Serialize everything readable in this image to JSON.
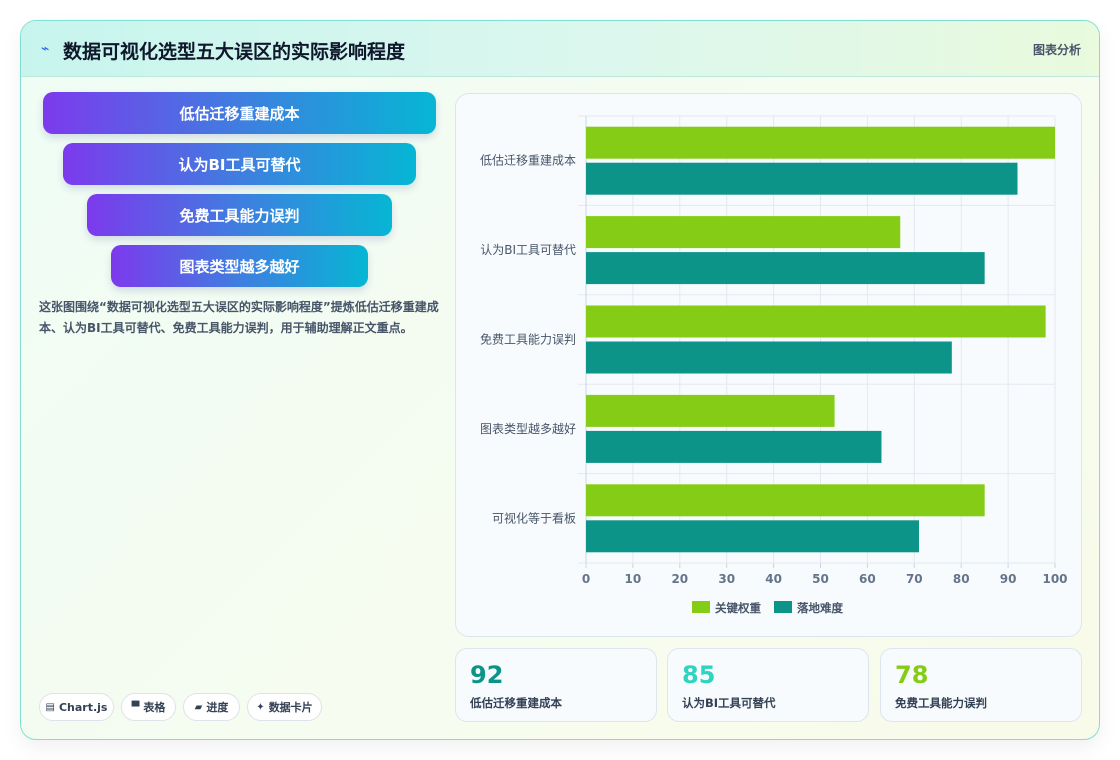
{
  "header": {
    "icon": "chart-spark-icon",
    "title": "数据可视化选型五大误区的实际影响程度",
    "right_label": "图表分析"
  },
  "tags": [
    "低估迁移重建成本",
    "认为BI工具可替代",
    "免费工具能力误判",
    "图表类型越多越好"
  ],
  "description": "这张图围绕“数据可视化选型五大误区的实际影响程度”提炼低估迁移重建成本、认为BI工具可替代、免费工具能力误判，用于辅助理解正文重点。",
  "chips": [
    {
      "icon": "chart-icon",
      "label": "Chart.js"
    },
    {
      "icon": "table-icon",
      "label": "表格"
    },
    {
      "icon": "progress-icon",
      "label": "进度"
    },
    {
      "icon": "sparkle-icon",
      "label": "数据卡片"
    }
  ],
  "stats": [
    {
      "value": "92",
      "label": "低估迁移重建成本",
      "color": "#0d9488"
    },
    {
      "value": "85",
      "label": "认为BI工具可替代",
      "color": "#2dd4bf"
    },
    {
      "value": "78",
      "label": "免费工具能力误判",
      "color": "#84cc16"
    }
  ],
  "chart_data": {
    "type": "bar",
    "orientation": "horizontal",
    "categories": [
      "低估迁移重建成本",
      "认为BI工具可替代",
      "免费工具能力误判",
      "图表类型越多越好",
      "可视化等于看板"
    ],
    "series": [
      {
        "name": "关键权重",
        "color": "#84cc16",
        "values": [
          100,
          67,
          98,
          53,
          85
        ]
      },
      {
        "name": "落地难度",
        "color": "#0d9488",
        "values": [
          92,
          85,
          78,
          63,
          71
        ]
      }
    ],
    "xlim": [
      0,
      100
    ],
    "xticks": [
      0,
      10,
      20,
      30,
      40,
      50,
      60,
      70,
      80,
      90,
      100
    ],
    "grid": true,
    "legend": "bottom"
  }
}
